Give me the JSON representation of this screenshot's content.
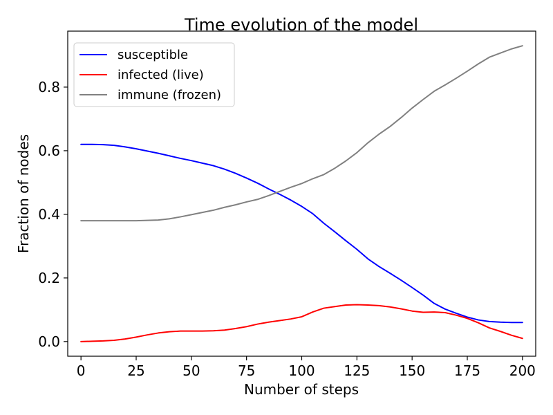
{
  "chart_data": {
    "type": "line",
    "title": "Time evolution of the model",
    "xlabel": "Number of steps",
    "ylabel": "Fraction of nodes",
    "xlim": [
      -6,
      206
    ],
    "ylim": [
      -0.046,
      0.976
    ],
    "xticks": [
      0,
      25,
      50,
      75,
      100,
      125,
      150,
      175,
      200
    ],
    "yticks": [
      0.0,
      0.2,
      0.4,
      0.6,
      0.8
    ],
    "ytick_labels": [
      "0.0",
      "0.2",
      "0.4",
      "0.6",
      "0.8"
    ],
    "grid": false,
    "legend_position": "top-left",
    "x": [
      0,
      5,
      10,
      15,
      20,
      25,
      30,
      35,
      40,
      45,
      50,
      55,
      60,
      65,
      70,
      75,
      80,
      85,
      90,
      95,
      100,
      105,
      110,
      115,
      120,
      125,
      130,
      135,
      140,
      145,
      150,
      155,
      160,
      165,
      170,
      175,
      180,
      185,
      190,
      195,
      200
    ],
    "series": [
      {
        "name": "susceptible",
        "color": "#0000ff",
        "values": [
          0.62,
          0.62,
          0.619,
          0.617,
          0.612,
          0.606,
          0.599,
          0.592,
          0.584,
          0.576,
          0.569,
          0.561,
          0.553,
          0.542,
          0.529,
          0.514,
          0.498,
          0.48,
          0.463,
          0.445,
          0.425,
          0.402,
          0.372,
          0.345,
          0.317,
          0.29,
          0.26,
          0.236,
          0.215,
          0.193,
          0.17,
          0.146,
          0.12,
          0.102,
          0.089,
          0.077,
          0.068,
          0.063,
          0.061,
          0.06,
          0.06
        ]
      },
      {
        "name": "infected (live)",
        "color": "#ff0000",
        "values": [
          0.0,
          0.001,
          0.002,
          0.004,
          0.008,
          0.014,
          0.021,
          0.027,
          0.031,
          0.033,
          0.033,
          0.033,
          0.034,
          0.036,
          0.041,
          0.047,
          0.055,
          0.061,
          0.066,
          0.071,
          0.078,
          0.093,
          0.105,
          0.11,
          0.115,
          0.116,
          0.115,
          0.113,
          0.109,
          0.103,
          0.096,
          0.092,
          0.093,
          0.091,
          0.083,
          0.073,
          0.059,
          0.043,
          0.032,
          0.02,
          0.01
        ]
      },
      {
        "name": "immune (frozen)",
        "color": "#808080",
        "values": [
          0.38,
          0.38,
          0.38,
          0.38,
          0.38,
          0.38,
          0.381,
          0.382,
          0.386,
          0.392,
          0.399,
          0.406,
          0.413,
          0.422,
          0.43,
          0.439,
          0.447,
          0.459,
          0.472,
          0.485,
          0.497,
          0.512,
          0.525,
          0.545,
          0.568,
          0.594,
          0.625,
          0.652,
          0.676,
          0.704,
          0.734,
          0.761,
          0.787,
          0.807,
          0.828,
          0.85,
          0.873,
          0.894,
          0.907,
          0.92,
          0.93
        ]
      }
    ]
  }
}
